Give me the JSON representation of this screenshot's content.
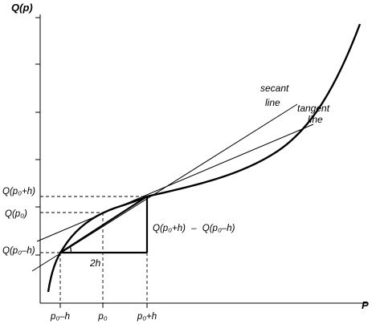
{
  "axes": {
    "y_label": "Q(p)",
    "x_label": "P"
  },
  "annotations": {
    "secant_line_1": "secant",
    "secant_line_2": "line",
    "tangent_line_1": "tangent",
    "tangent_line_2": "line",
    "rise_upper": "Q(p₀+h)",
    "rise_minus": "–",
    "rise_lower": "Q(p₀–h)",
    "run": "2h"
  },
  "y_ticks": {
    "upper": "Q(p₀+h)",
    "mid": "Q(p₀)",
    "lower": "Q(p₀–h)"
  },
  "x_ticks": {
    "left": "p₀–h",
    "mid": "p₀",
    "right": "p₀+h"
  }
}
